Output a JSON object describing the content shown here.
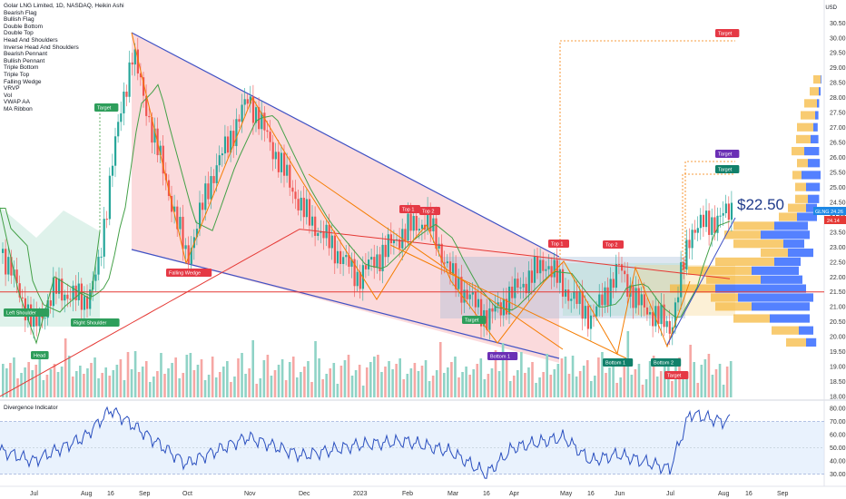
{
  "header": {
    "title": "Golar LNG Limited, 1D, NASDAQ, Heikin Ashi",
    "currency": "USD"
  },
  "indicator_list": [
    "Bearish Flag",
    "Bullish Flag",
    "Double Bottom",
    "Double Top",
    "Head And Shoulders",
    "Inverse Head And Shoulders",
    "Bearish Pennant",
    "Bullish Pennant",
    "Triple Bottom",
    "Triple Top",
    "Falling Wedge",
    "VRVP",
    "Vol",
    "VWAP AA",
    "MA Ribbon"
  ],
  "price_label": "$22.50",
  "price_badges": {
    "symbol": "GLNG",
    "last": "24.26",
    "second": "24.14"
  },
  "oscillator_title": "Divergence Indicator",
  "pattern_labels": {
    "target_left": "Target",
    "target_top": "Target",
    "target_purple": "Target",
    "target_green": "Target",
    "target_bottom": "Target",
    "target_mid": "Target",
    "falling_wedge": "Falling Wedge",
    "left_shoulder": "Left Shoulder",
    "right_shoulder": "Right Shoulder",
    "head": "Head",
    "top1_a": "Top 1",
    "top2_a": "Top 2",
    "top1_b": "Top 1",
    "top2_b": "Top 2",
    "bottom1_a": "Bottom 1",
    "bottom1_b": "Bottom 1",
    "bottom2": "Bottom 2"
  },
  "colors": {
    "up": "#26a69a",
    "down": "#ef5350",
    "wedge": "#f8bbc0",
    "wedge_line": "#3f51c4",
    "pattern": "#f57c00",
    "ma": "#e53935",
    "ma2": "#43a047",
    "vrvp_up": "#2962ff",
    "vrvp_dn": "#f5b942",
    "osc": "#2a4fbf",
    "osc_fill": "#dbeafb"
  },
  "chart_data": [
    {
      "type": "line",
      "name": "price",
      "title": "Golar LNG Limited, 1D, NASDAQ, Heikin Ashi",
      "x_ticks": [
        "Jul",
        "Aug",
        "16",
        "Sep",
        "Oct",
        "Nov",
        "Dec",
        "2023",
        "Feb",
        "Mar",
        "16",
        "Apr",
        "May",
        "16",
        "Jun",
        "Jul",
        "Aug",
        "16",
        "Sep"
      ],
      "y_ticks": [
        "30.50",
        "30.00",
        "29.50",
        "29.00",
        "28.50",
        "28.00",
        "27.50",
        "27.00",
        "26.50",
        "26.00",
        "25.50",
        "25.00",
        "24.50",
        "24.00",
        "23.50",
        "23.00",
        "22.50",
        "22.00",
        "21.50",
        "21.00",
        "20.50",
        "20.00",
        "19.50",
        "19.00",
        "18.50",
        "18.00"
      ],
      "ylim": [
        18.0,
        30.6
      ],
      "x": [
        "Jul",
        "Aug",
        "16",
        "Sep",
        "Oct",
        "Nov",
        "Dec",
        "2023",
        "Feb",
        "Mar",
        "16",
        "Apr",
        "May",
        "16",
        "Jun",
        "Jul",
        "Aug"
      ],
      "close": [
        22.8,
        21.6,
        29.3,
        26.8,
        25.0,
        27.9,
        24.8,
        23.4,
        23.6,
        22.0,
        20.6,
        21.8,
        22.0,
        20.3,
        22.0,
        23.8,
        24.3
      ],
      "levels": [
        {
          "label": "Target",
          "value": 30.1
        },
        {
          "label": "Target",
          "value": 25.4
        },
        {
          "label": "Target",
          "value": 25.9
        }
      ]
    },
    {
      "type": "line",
      "name": "Divergence Indicator",
      "title": "Divergence Indicator",
      "y_ticks": [
        "80.00",
        "70.00",
        "60.00",
        "50.00",
        "40.00",
        "30.00"
      ],
      "ylim": [
        25,
        82
      ],
      "x": [
        "Jul",
        "Aug",
        "16",
        "Sep",
        "Oct",
        "Nov",
        "Dec",
        "2023",
        "Feb",
        "Mar",
        "16",
        "Apr",
        "May",
        "16",
        "Jun",
        "Jul",
        "Aug"
      ],
      "values": [
        48,
        55,
        78,
        62,
        40,
        58,
        44,
        52,
        55,
        47,
        33,
        50,
        58,
        40,
        45,
        74,
        72
      ],
      "bands": [
        70,
        30
      ]
    }
  ]
}
